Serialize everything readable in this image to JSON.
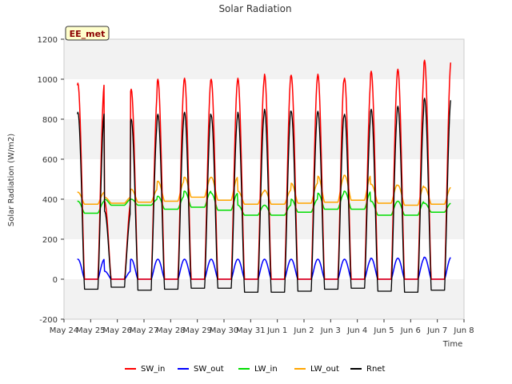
{
  "chart_data": {
    "type": "line",
    "title": "Solar Radiation",
    "xlabel": "Time",
    "ylabel": "Solar Radiation (W/m2)",
    "badge": "EE_met",
    "ylim": [
      -200,
      1200
    ],
    "yticks": [
      -200,
      0,
      200,
      400,
      600,
      800,
      1000,
      1200
    ],
    "xlim": [
      0,
      15
    ],
    "xtick_labels": [
      "May 24",
      "May 25",
      "May 26",
      "May 27",
      "May 28",
      "May 29",
      "May 30",
      "May 31",
      "Jun 1",
      "Jun 2",
      "Jun 3",
      "Jun 4",
      "Jun 5",
      "Jun 6",
      "Jun 7",
      "Jun 8"
    ],
    "grid": "horizontal bands",
    "legend_position": "bottom",
    "daily_peaks": {
      "day_start": 0.5,
      "SW_in": [
        980,
        390,
        950,
        1000,
        1005,
        1000,
        1005,
        1025,
        1020,
        1025,
        1005,
        1040,
        1050,
        1095
      ],
      "SW_out": [
        100,
        40,
        100,
        100,
        100,
        100,
        100,
        100,
        100,
        100,
        100,
        105,
        105,
        110
      ],
      "LW_in": [
        390,
        400,
        400,
        415,
        440,
        430,
        370,
        370,
        400,
        430,
        440,
        390,
        390,
        380
      ],
      "LW_out": [
        435,
        410,
        450,
        490,
        510,
        510,
        440,
        445,
        480,
        515,
        520,
        475,
        470,
        460
      ],
      "LW_in_night": [
        330,
        370,
        370,
        350,
        360,
        345,
        320,
        320,
        335,
        350,
        350,
        320,
        320,
        335
      ],
      "LW_out_night": [
        375,
        380,
        385,
        390,
        410,
        395,
        375,
        375,
        380,
        385,
        395,
        380,
        370,
        375
      ],
      "Rnet_night": [
        -50,
        -40,
        -55,
        -50,
        -45,
        -45,
        -65,
        -65,
        -60,
        -50,
        -45,
        -60,
        -65,
        -55
      ]
    },
    "series": [
      {
        "name": "SW_in",
        "color": "#ff0000"
      },
      {
        "name": "SW_out",
        "color": "#0000ff"
      },
      {
        "name": "LW_in",
        "color": "#00dd00"
      },
      {
        "name": "LW_out",
        "color": "#ffa500"
      },
      {
        "name": "Rnet",
        "color": "#000000"
      }
    ]
  }
}
